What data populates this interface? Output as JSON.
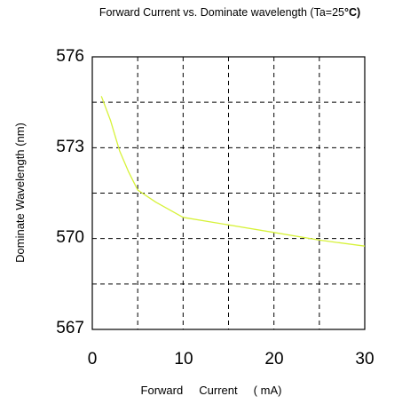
{
  "chart_data": {
    "type": "line",
    "title": "Forward Current vs. Dominate wavelength (Ta=25",
    "title_unit": "°C)",
    "xlabel": "Forward     Current     ( mA)",
    "ylabel": "Dominate Wavelength  (nm)",
    "xlim": [
      0,
      30
    ],
    "ylim": [
      567,
      576
    ],
    "x_ticks": [
      "0",
      "10",
      "20",
      "30"
    ],
    "y_ticks": [
      "576",
      "573",
      "570",
      "567"
    ],
    "grid": true,
    "grid_style": "dashed",
    "series": [
      {
        "color": "#d7f23a",
        "x": [
          1,
          2,
          3,
          4,
          5,
          7,
          10,
          15,
          20,
          25,
          30
        ],
        "y": [
          574.7,
          573.9,
          572.9,
          572.2,
          571.6,
          571.2,
          570.7,
          570.45,
          570.2,
          569.95,
          569.75
        ]
      }
    ]
  }
}
